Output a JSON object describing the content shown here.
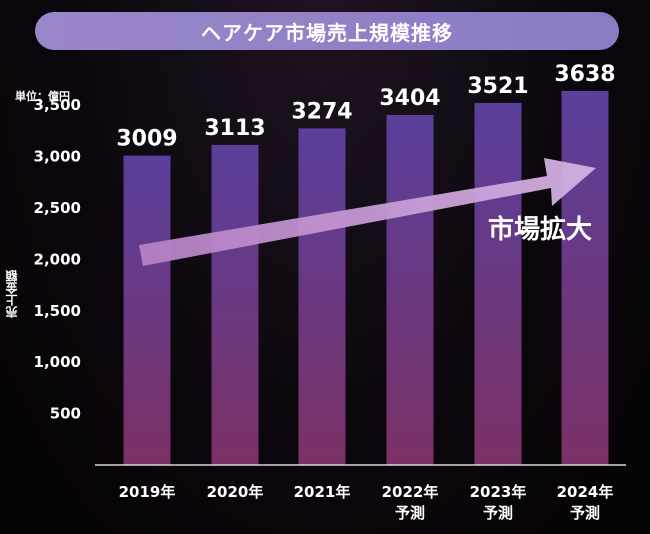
{
  "title": "ヘアケア市場売上規模推移",
  "unit": "単位：億円",
  "ylabel": "売上金額",
  "annotation": "市場拡大",
  "colors": {
    "title_pill": "#9381c7",
    "bar_top": "#5a3f9c",
    "bar_bottom": "#7b3166",
    "arrow": "#c49bd6"
  },
  "chart_data": {
    "type": "bar",
    "categories": [
      "2019年",
      "2020年",
      "2021年",
      "2022年\n予測",
      "2023年\n予測",
      "2024年\n予測"
    ],
    "values": [
      3009,
      3113,
      3274,
      3404,
      3521,
      3638
    ],
    "data_labels": [
      "3009",
      "3113",
      "3274",
      "3404",
      "3521",
      "3638"
    ],
    "yticks": [
      500,
      1000,
      1500,
      2000,
      2500,
      3000,
      3500
    ],
    "ytick_labels": [
      "500",
      "1,000",
      "1,500",
      "2,000",
      "2,500",
      "3,000",
      "3,500"
    ],
    "ylim": [
      0,
      3900
    ],
    "title": "ヘアケア市場売上規模推移",
    "xlabel": "",
    "ylabel": "売上金額",
    "grid": false,
    "legend": "none"
  }
}
